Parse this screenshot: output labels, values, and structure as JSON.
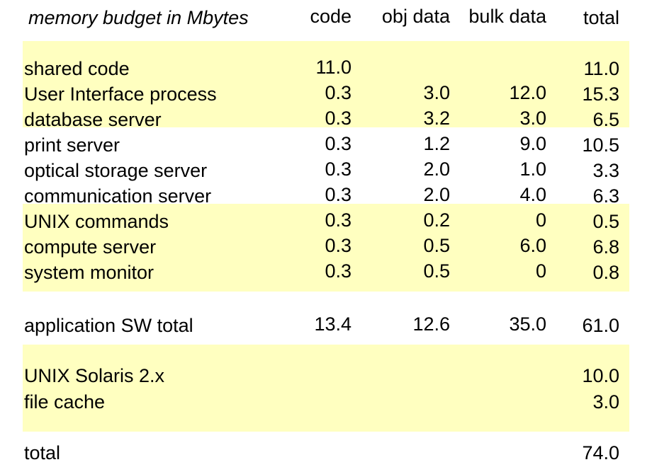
{
  "header": {
    "title": "memory budget in Mbytes",
    "columns": [
      "code",
      "obj data",
      "bulk data",
      "total"
    ]
  },
  "highlight_color": "#ffffc0",
  "rows": [
    {
      "label": "shared code",
      "code": "11.0",
      "obj": "",
      "bulk": "",
      "total": "11.0"
    },
    {
      "label": "User Interface process",
      "code": "0.3",
      "obj": "3.0",
      "bulk": "12.0",
      "total": "15.3"
    },
    {
      "label": "database server",
      "code": "0.3",
      "obj": "3.2",
      "bulk": "3.0",
      "total": "6.5"
    },
    {
      "label": "print server",
      "code": "0.3",
      "obj": "1.2",
      "bulk": "9.0",
      "total": "10.5"
    },
    {
      "label": "optical storage server",
      "code": "0.3",
      "obj": "2.0",
      "bulk": "1.0",
      "total": "3.3"
    },
    {
      "label": "communication server",
      "code": "0.3",
      "obj": "2.0",
      "bulk": "4.0",
      "total": "6.3"
    },
    {
      "label": "UNIX commands",
      "code": "0.3",
      "obj": "0.2",
      "bulk": "0",
      "total": "0.5"
    },
    {
      "label": "compute server",
      "code": "0.3",
      "obj": "0.5",
      "bulk": "6.0",
      "total": "6.8"
    },
    {
      "label": "system monitor",
      "code": "0.3",
      "obj": "0.5",
      "bulk": "0",
      "total": "0.8"
    },
    {
      "label": "application SW total",
      "code": "13.4",
      "obj": "12.6",
      "bulk": "35.0",
      "total": "61.0"
    },
    {
      "label": "UNIX Solaris 2.x",
      "code": "",
      "obj": "",
      "bulk": "",
      "total": "10.0"
    },
    {
      "label": "file cache",
      "code": "",
      "obj": "",
      "bulk": "",
      "total": "3.0"
    },
    {
      "label": "total",
      "code": "",
      "obj": "",
      "bulk": "",
      "total": "74.0"
    }
  ]
}
